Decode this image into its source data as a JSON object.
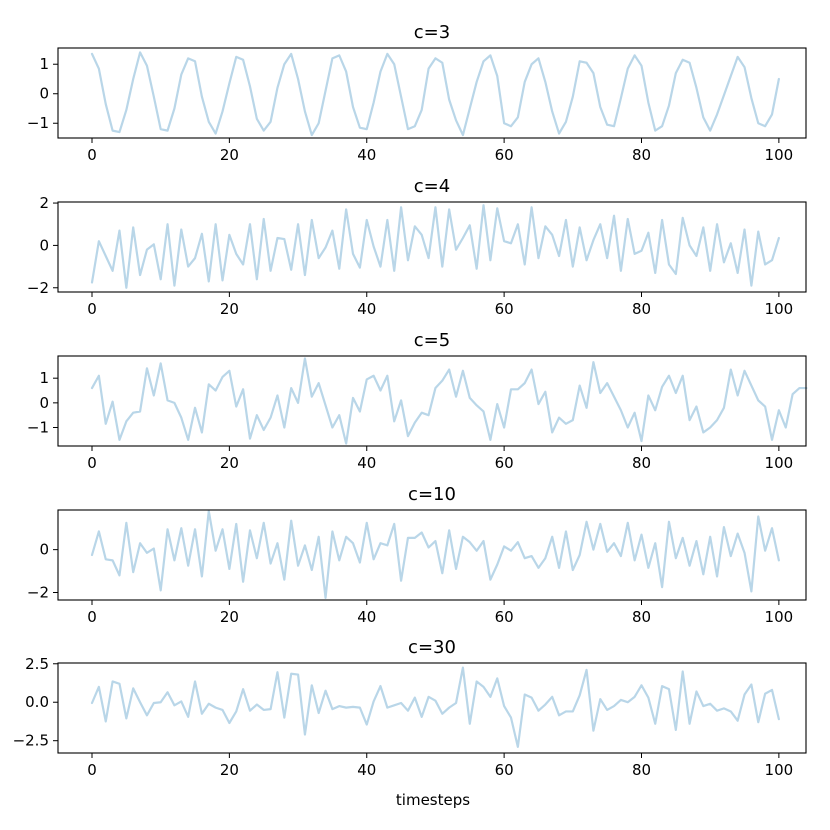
{
  "figure": {
    "xlabel": "timesteps"
  },
  "colors": {
    "series": "#b9d6e8",
    "axes": "#000000",
    "background": "#ffffff"
  },
  "chart_data": [
    {
      "type": "line",
      "title": "c=3",
      "xlim": [
        -4.95,
        103.95
      ],
      "ylim": [
        -1.5,
        1.55
      ],
      "xticks": [
        0,
        20,
        40,
        60,
        80,
        100
      ],
      "yticks": [
        -1,
        0,
        1
      ],
      "ytick_labels": [
        "−1",
        "0",
        "1"
      ],
      "series": [
        {
          "x_start": 0,
          "x_step": 1,
          "values": [
            1.35,
            0.85,
            -0.35,
            -1.25,
            -1.3,
            -0.55,
            0.5,
            1.4,
            0.95,
            -0.1,
            -1.2,
            -1.25,
            -0.5,
            0.65,
            1.2,
            1.1,
            -0.1,
            -0.95,
            -1.35,
            -0.6,
            0.35,
            1.25,
            1.15,
            0.25,
            -0.85,
            -1.25,
            -0.95,
            0.2,
            1.0,
            1.35,
            0.5,
            -0.6,
            -1.4,
            -1.0,
            0.1,
            1.2,
            1.3,
            0.75,
            -0.45,
            -1.15,
            -1.2,
            -0.3,
            0.75,
            1.35,
            1.0,
            -0.1,
            -1.2,
            -1.1,
            -0.55,
            0.85,
            1.2,
            1.05,
            -0.2,
            -0.9,
            -1.4,
            -0.5,
            0.4,
            1.1,
            1.3,
            0.6,
            -1.0,
            -1.1,
            -0.8,
            0.4,
            1.0,
            1.2,
            0.4,
            -0.6,
            -1.35,
            -0.95,
            -0.1,
            1.1,
            1.05,
            0.7,
            -0.45,
            -1.05,
            -1.1,
            -0.15,
            0.85,
            1.3,
            0.95,
            -0.3,
            -1.25,
            -1.1,
            -0.4,
            0.7,
            1.15,
            1.05,
            0.2,
            -0.8,
            -1.25,
            -0.7,
            -0.05,
            0.6,
            1.25,
            0.9,
            -0.15,
            -1.0,
            -1.1,
            -0.7,
            0.5
          ]
        }
      ]
    },
    {
      "type": "line",
      "title": "c=4",
      "xlim": [
        -4.95,
        103.95
      ],
      "ylim": [
        -2.2,
        2.05
      ],
      "xticks": [
        0,
        20,
        40,
        60,
        80,
        100
      ],
      "yticks": [
        -2,
        0,
        2
      ],
      "ytick_labels": [
        "−2",
        "0",
        "2"
      ],
      "series": [
        {
          "x_start": 0,
          "x_step": 1,
          "values": [
            -1.75,
            0.2,
            -0.5,
            -1.2,
            0.7,
            -2.0,
            0.85,
            -1.4,
            -0.2,
            0.05,
            -1.6,
            1.0,
            -1.9,
            0.75,
            -1.0,
            -0.6,
            0.55,
            -1.7,
            1.0,
            -1.65,
            0.5,
            -0.4,
            -0.9,
            1.0,
            -1.6,
            1.25,
            -1.2,
            0.35,
            0.3,
            -1.15,
            1.0,
            -1.4,
            1.2,
            -0.6,
            -0.1,
            0.7,
            -1.1,
            1.7,
            -0.4,
            -1.05,
            1.2,
            -0.05,
            -1.0,
            1.2,
            -1.2,
            1.8,
            -0.7,
            0.9,
            0.5,
            -0.6,
            1.8,
            -1.0,
            1.7,
            -0.2,
            0.35,
            0.95,
            -1.1,
            1.9,
            -0.7,
            1.75,
            0.2,
            0.1,
            1.0,
            -0.9,
            1.8,
            -0.6,
            0.9,
            0.5,
            -0.5,
            1.2,
            -1.0,
            0.85,
            -0.7,
            0.25,
            1.0,
            -0.6,
            1.4,
            -1.2,
            1.25,
            -0.4,
            -0.25,
            0.6,
            -1.3,
            1.2,
            -0.9,
            -1.35,
            1.3,
            0.0,
            -0.5,
            0.85,
            -1.2,
            1.0,
            -0.8,
            0.1,
            -1.3,
            0.75,
            -1.9,
            0.65,
            -0.9,
            -0.7,
            0.35
          ]
        }
      ]
    },
    {
      "type": "line",
      "title": "c=5",
      "xlim": [
        -4.95,
        103.95
      ],
      "ylim": [
        -1.75,
        1.9
      ],
      "xticks": [
        0,
        20,
        40,
        60,
        80,
        100
      ],
      "yticks": [
        -1,
        0,
        1
      ],
      "ytick_labels": [
        "−1",
        "0",
        "1"
      ],
      "series": [
        {
          "x_start": 0,
          "x_step": 1,
          "values": [
            0.6,
            1.1,
            -0.85,
            0.05,
            -1.5,
            -0.75,
            -0.4,
            -0.35,
            1.4,
            0.3,
            1.6,
            0.1,
            0.0,
            -0.6,
            -1.5,
            -0.2,
            -1.2,
            0.75,
            0.5,
            1.05,
            1.3,
            -0.15,
            0.55,
            -1.45,
            -0.5,
            -1.1,
            -0.6,
            0.3,
            -1.0,
            0.6,
            0.0,
            1.8,
            0.25,
            0.8,
            -0.1,
            -1.0,
            -0.5,
            -1.65,
            0.2,
            -0.35,
            0.95,
            1.1,
            0.5,
            1.1,
            -0.75,
            0.1,
            -1.35,
            -0.8,
            -0.4,
            -0.5,
            0.6,
            0.9,
            1.35,
            0.25,
            1.3,
            0.2,
            -0.1,
            -0.35,
            -1.5,
            -0.05,
            -1.0,
            0.55,
            0.55,
            0.8,
            1.35,
            -0.05,
            0.45,
            -1.2,
            -0.6,
            -0.85,
            -0.7,
            0.7,
            -0.2,
            1.65,
            0.4,
            0.8,
            0.25,
            -0.3,
            -1.0,
            -0.4,
            -1.55,
            0.3,
            -0.3,
            0.65,
            1.1,
            0.4,
            1.1,
            -0.7,
            -0.15,
            -1.2,
            -1.0,
            -0.7,
            -0.2,
            1.35,
            0.3,
            1.3,
            0.7,
            0.1,
            -0.15,
            -1.5,
            -0.3,
            -1.0,
            0.35,
            0.6,
            0.6
          ]
        }
      ]
    },
    {
      "type": "line",
      "title": "c=10",
      "xlim": [
        -4.95,
        103.95
      ],
      "ylim": [
        -2.35,
        1.85
      ],
      "xticks": [
        0,
        20,
        40,
        60,
        80,
        100
      ],
      "yticks": [
        -2,
        0
      ],
      "ytick_labels": [
        "−2",
        "0"
      ],
      "series": [
        {
          "x_start": 0,
          "x_step": 1,
          "values": [
            -0.25,
            0.85,
            -0.45,
            -0.5,
            -1.2,
            1.25,
            -1.05,
            0.3,
            -0.15,
            0.05,
            -1.9,
            0.95,
            -0.5,
            1.0,
            -0.75,
            0.95,
            -1.25,
            1.8,
            -0.05,
            0.95,
            -0.9,
            1.2,
            -1.5,
            0.9,
            -0.4,
            1.25,
            -0.65,
            0.3,
            -1.4,
            1.35,
            -0.75,
            0.2,
            -0.95,
            0.6,
            -2.25,
            0.85,
            -0.5,
            0.6,
            0.3,
            -0.6,
            1.25,
            -0.45,
            0.3,
            0.2,
            1.2,
            -1.45,
            0.55,
            0.55,
            0.8,
            0.1,
            0.4,
            -1.1,
            0.9,
            -0.9,
            0.6,
            0.35,
            -0.05,
            0.4,
            -1.4,
            -0.7,
            0.15,
            -0.05,
            0.35,
            -0.4,
            -0.3,
            -0.85,
            -0.4,
            0.6,
            -0.85,
            0.85,
            -0.95,
            -0.25,
            1.3,
            0.0,
            1.2,
            -0.1,
            0.3,
            -0.3,
            1.25,
            -0.5,
            0.7,
            -0.85,
            0.3,
            -1.75,
            1.3,
            -0.4,
            0.55,
            -0.75,
            0.4,
            -1.15,
            0.6,
            -1.25,
            1.05,
            -0.3,
            0.75,
            -0.15,
            -1.95,
            1.55,
            -0.05,
            1.0,
            -0.5
          ]
        }
      ]
    },
    {
      "type": "line",
      "title": "c=30",
      "xlim": [
        -4.95,
        103.95
      ],
      "ylim": [
        -3.3,
        2.55
      ],
      "xticks": [
        0,
        20,
        40,
        60,
        80,
        100
      ],
      "yticks": [
        -2.5,
        0.0,
        2.5
      ],
      "ytick_labels": [
        "−2.5",
        "0.0",
        "2.5"
      ],
      "series": [
        {
          "x_start": 0,
          "x_step": 1,
          "values": [
            -0.05,
            1.0,
            -1.25,
            1.35,
            1.2,
            -1.05,
            0.9,
            0.0,
            -0.85,
            -0.05,
            0.0,
            0.65,
            -0.2,
            0.05,
            -0.95,
            1.35,
            -0.75,
            -0.1,
            -0.35,
            -0.5,
            -1.35,
            -0.6,
            0.85,
            -0.55,
            -0.15,
            -0.5,
            -0.45,
            1.95,
            -1.0,
            1.85,
            1.8,
            -2.1,
            1.1,
            -0.7,
            0.75,
            -0.45,
            -0.25,
            -0.35,
            -0.3,
            -0.35,
            -1.45,
            0.05,
            1.05,
            -0.35,
            -0.2,
            -0.05,
            -0.55,
            0.3,
            -0.95,
            0.35,
            0.1,
            -0.75,
            -0.35,
            -0.05,
            2.25,
            -1.4,
            1.35,
            1.0,
            0.35,
            1.55,
            -0.25,
            -1.0,
            -2.9,
            0.5,
            0.3,
            -0.55,
            -0.15,
            0.35,
            -0.85,
            -0.6,
            -0.6,
            0.45,
            2.1,
            -1.85,
            0.2,
            -0.5,
            -0.25,
            0.15,
            0.0,
            0.35,
            1.1,
            0.3,
            -1.4,
            1.05,
            0.85,
            -1.8,
            2.0,
            -1.4,
            0.7,
            -0.25,
            -0.1,
            -0.55,
            -0.4,
            -0.6,
            -1.2,
            0.5,
            1.15,
            -1.3,
            0.55,
            0.8,
            -1.1
          ]
        }
      ]
    }
  ]
}
